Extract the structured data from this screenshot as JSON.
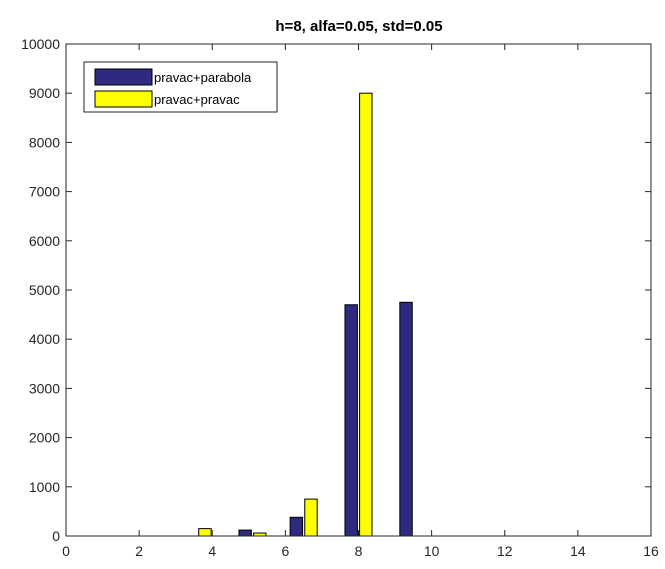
{
  "chart_data": {
    "type": "bar",
    "title": "h=8, alfa=0.05, std=0.05",
    "xlabel": "",
    "ylabel": "",
    "xlim": [
      0,
      16
    ],
    "ylim": [
      0,
      10000
    ],
    "xticks": [
      "0",
      "2",
      "4",
      "6",
      "8",
      "10",
      "12",
      "14",
      "16"
    ],
    "yticks": [
      "0",
      "1000",
      "2000",
      "3000",
      "4000",
      "5000",
      "6000",
      "7000",
      "8000",
      "9000",
      "10000"
    ],
    "grid": false,
    "legend_position": "top-left",
    "series": [
      {
        "name": "pravac+parabola",
        "color": "#2e2a7f",
        "points": [
          {
            "x": 3.6,
            "y": 0
          },
          {
            "x": 4.9,
            "y": 120
          },
          {
            "x": 6.3,
            "y": 380
          },
          {
            "x": 7.8,
            "y": 4700
          },
          {
            "x": 9.3,
            "y": 4750
          }
        ]
      },
      {
        "name": "pravac+pravac",
        "color": "#ffff00",
        "points": [
          {
            "x": 3.8,
            "y": 150
          },
          {
            "x": 5.3,
            "y": 60
          },
          {
            "x": 6.7,
            "y": 750
          },
          {
            "x": 8.2,
            "y": 9000
          },
          {
            "x": 9.7,
            "y": 0
          }
        ]
      }
    ]
  }
}
